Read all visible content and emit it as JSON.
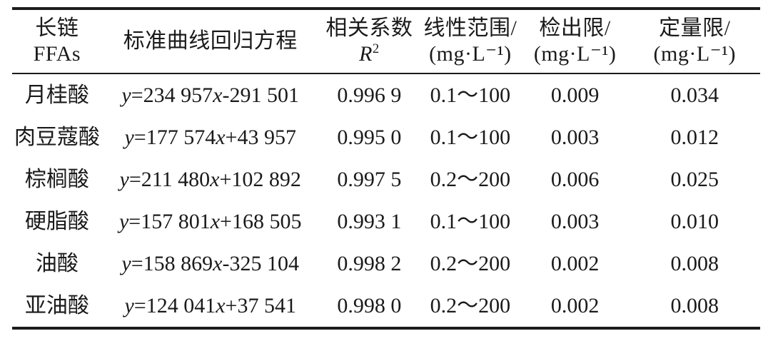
{
  "table": {
    "colors": {
      "text": "#1a1a1a",
      "rule": "#1c1c1c",
      "background": "#ffffff"
    },
    "header": {
      "col1": "长链FFAs",
      "col2": "标准曲线回归方程",
      "col3_line1": "相关系数",
      "col3_symbol_base": "R",
      "col3_symbol_sup": "2",
      "col4_line1": "线性范围/",
      "col4_line2": "(mg·L⁻¹)",
      "col5_line1": "检出限/",
      "col5_line2": "(mg·L⁻¹)",
      "col6_line1": "定量限/",
      "col6_line2": "(mg·L⁻¹)"
    },
    "rows": [
      {
        "name": "月桂酸",
        "equation": "y=234 957x-291 501",
        "r2": "0.996 9",
        "range": "0.1～100",
        "lod": "0.009",
        "loq": "0.034"
      },
      {
        "name": "肉豆蔻酸",
        "equation": "y=177 574x+43 957",
        "r2": "0.995 0",
        "range": "0.1～100",
        "lod": "0.003",
        "loq": "0.012"
      },
      {
        "name": "棕榈酸",
        "equation": "y=211 480x+102 892",
        "r2": "0.997 5",
        "range": "0.2～200",
        "lod": "0.006",
        "loq": "0.025"
      },
      {
        "name": "硬脂酸",
        "equation": "y=157 801x+168 505",
        "r2": "0.993 1",
        "range": "0.1～100",
        "lod": "0.003",
        "loq": "0.010"
      },
      {
        "name": "油酸",
        "equation": "y=158 869x-325 104",
        "r2": "0.998 2",
        "range": "0.2～200",
        "lod": "0.002",
        "loq": "0.008"
      },
      {
        "name": "亚油酸",
        "equation": "y=124 041x+37 541",
        "r2": "0.998 0",
        "range": "0.2～200",
        "lod": "0.002",
        "loq": "0.008"
      }
    ]
  }
}
